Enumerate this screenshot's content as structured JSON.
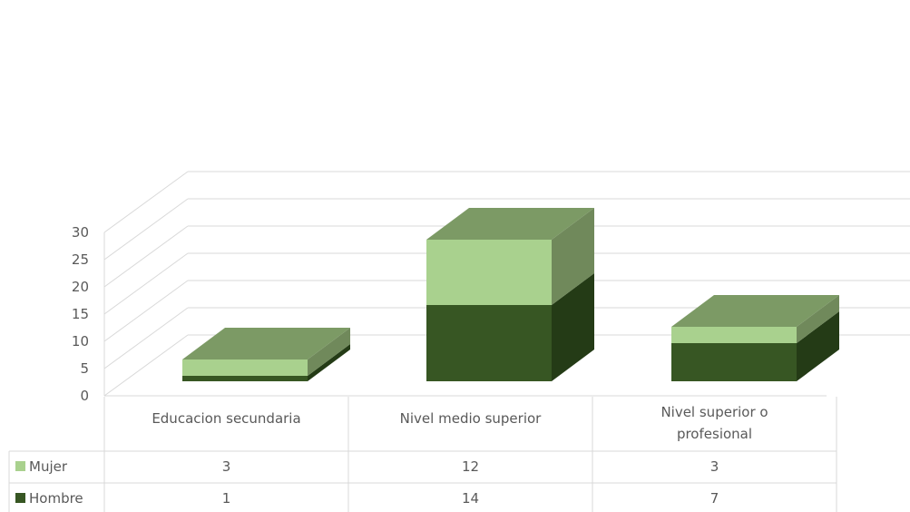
{
  "chart_data": {
    "type": "bar",
    "stacked": true,
    "three_d": true,
    "categories": [
      "Educacion secundaria",
      "Nivel medio superior",
      "Nivel superior o profesional"
    ],
    "category_lines": [
      [
        "Educacion secundaria"
      ],
      [
        "Nivel medio superior"
      ],
      [
        "Nivel superior o",
        "profesional"
      ]
    ],
    "series": [
      {
        "name": "Hombre",
        "values": [
          1,
          14,
          7
        ]
      },
      {
        "name": "Mujer",
        "values": [
          3,
          12,
          3
        ]
      }
    ],
    "y_ticks": [
      "0",
      "5",
      "10",
      "15",
      "20",
      "25",
      "30"
    ],
    "ylim": [
      0,
      30
    ],
    "grid": true,
    "data_table": {
      "rows": [
        {
          "series": "Mujer",
          "values": [
            "3",
            "12",
            "3"
          ]
        },
        {
          "series": "Hombre",
          "values": [
            "1",
            "14",
            "7"
          ]
        }
      ]
    },
    "colors": {
      "hombre_front": "#375623",
      "hombre_side": "#243B16",
      "mujer_front": "#A9D18E",
      "mujer_side": "#70895B",
      "top": "#7C9A65",
      "grid": "#D9D9D9"
    }
  }
}
